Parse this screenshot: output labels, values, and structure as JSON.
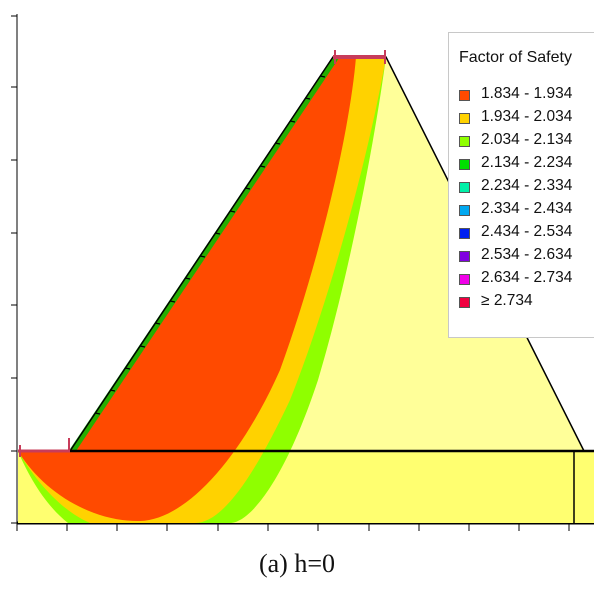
{
  "legend": {
    "title": "Factor of Safety",
    "items": [
      {
        "label": "1.834 - 1.934",
        "color": "#ff4a00"
      },
      {
        "label": "1.934 - 2.034",
        "color": "#ffd200"
      },
      {
        "label": "2.034 - 2.134",
        "color": "#8fff00"
      },
      {
        "label": "2.134 - 2.234",
        "color": "#00e000"
      },
      {
        "label": "2.234 - 2.334",
        "color": "#00f0a8"
      },
      {
        "label": "2.334 - 2.434",
        "color": "#00a8f0"
      },
      {
        "label": "2.434 - 2.534",
        "color": "#0020f0"
      },
      {
        "label": "2.534 - 2.634",
        "color": "#8000e0"
      },
      {
        "label": "2.634 - 2.734",
        "color": "#f000e8"
      },
      {
        "label": "≥ 2.734",
        "color": "#f00040"
      }
    ]
  },
  "caption": "(a) h=0",
  "colors": {
    "soil": "#ffff99",
    "foundation": "#ffff70",
    "zone_min": "#ff4a00",
    "zone_2": "#ffd200",
    "zone_3": "#8fff00",
    "slope_hatch": "#00c000",
    "load_marker": "#c83c5a"
  }
}
